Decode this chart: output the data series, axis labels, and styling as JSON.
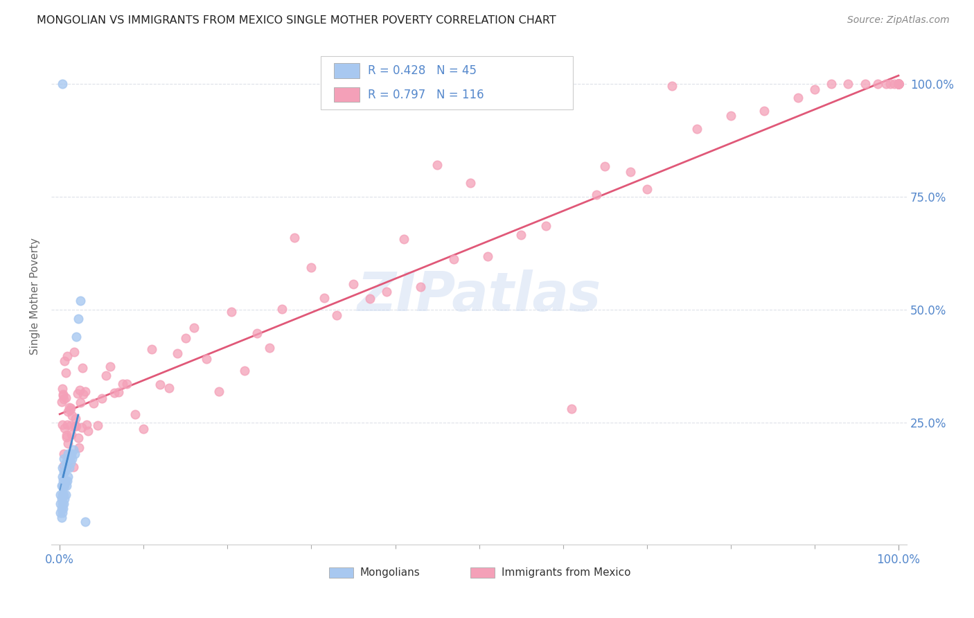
{
  "title": "MONGOLIAN VS IMMIGRANTS FROM MEXICO SINGLE MOTHER POVERTY CORRELATION CHART",
  "source": "Source: ZipAtlas.com",
  "ylabel": "Single Mother Poverty",
  "watermark": "ZIPatlas",
  "mongolian_R": 0.428,
  "mongolian_N": 45,
  "mexico_R": 0.797,
  "mexico_N": 116,
  "mongolian_color": "#a8c8f0",
  "mexico_color": "#f4a0b8",
  "mongolian_line_color": "#4488cc",
  "mexico_line_color": "#e05878",
  "background_color": "#ffffff",
  "grid_color": "#dde0e8",
  "right_label_color": "#5588cc",
  "title_color": "#222222",
  "label_color": "#888888",
  "source_color": "#888888"
}
